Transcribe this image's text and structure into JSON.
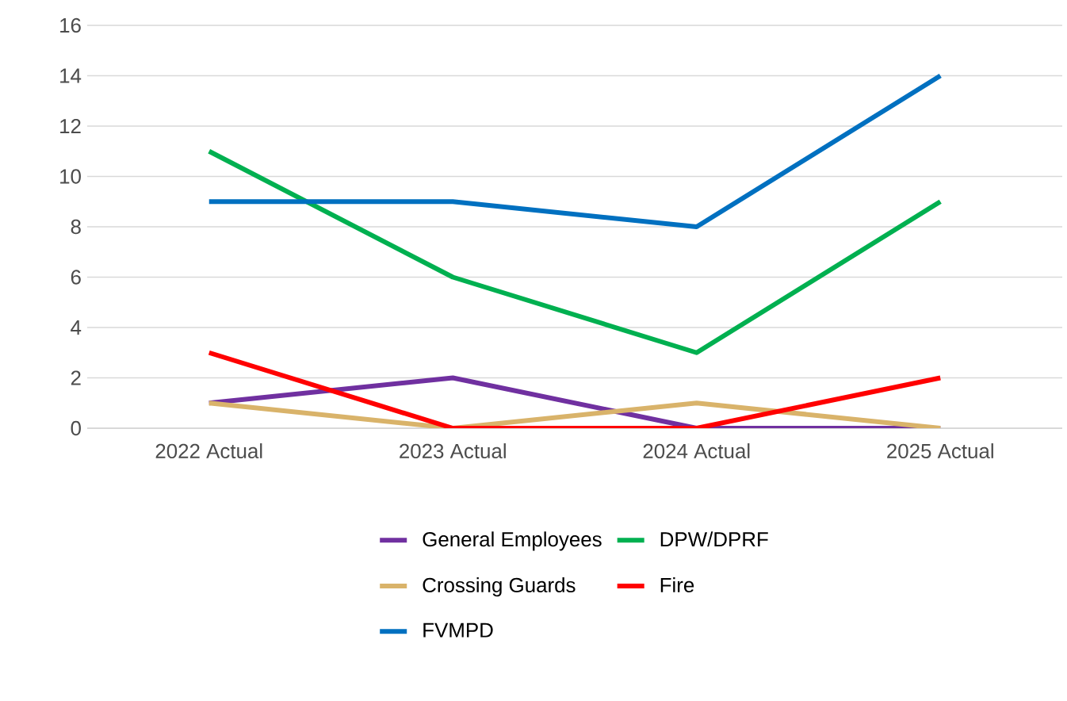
{
  "chart_data": {
    "type": "line",
    "categories": [
      "2022 Actual",
      "2023 Actual",
      "2024 Actual",
      "2025 Actual"
    ],
    "series": [
      {
        "name": "General Employees",
        "color": "#7030a0",
        "values": [
          1,
          2,
          0,
          0
        ]
      },
      {
        "name": "DPW/DPRF",
        "color": "#00b050",
        "values": [
          11,
          6,
          3,
          9
        ]
      },
      {
        "name": "Crossing Guards",
        "color": "#d9b36a",
        "values": [
          1,
          0,
          1,
          0
        ]
      },
      {
        "name": "Fire",
        "color": "#ff0000",
        "values": [
          3,
          0,
          0,
          2
        ]
      },
      {
        "name": "FVMPD",
        "color": "#0070c0",
        "values": [
          9,
          9,
          8,
          14
        ]
      }
    ],
    "ylim": [
      0,
      16
    ],
    "yticks": [
      0,
      2,
      4,
      6,
      8,
      10,
      12,
      14,
      16
    ],
    "grid": "y",
    "legend": "bottom",
    "marker": "none",
    "line_style": "solid"
  }
}
